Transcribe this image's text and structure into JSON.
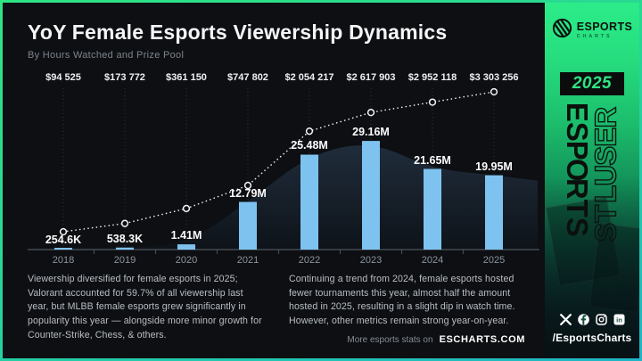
{
  "header": {
    "title": "YoY Female Esports Viewership Dynamics",
    "subtitle": "By Hours Watched and Prize Pool"
  },
  "chart_data": {
    "type": "bar",
    "title": "YoY Female Esports Viewership Dynamics",
    "subtitle": "By Hours Watched and Prize Pool",
    "categories": [
      "2018",
      "2019",
      "2020",
      "2021",
      "2022",
      "2023",
      "2024",
      "2025"
    ],
    "series": [
      {
        "name": "Hours Watched",
        "type": "bar",
        "values_millions": [
          0.2546,
          0.5383,
          1.41,
          12.79,
          25.48,
          29.16,
          21.65,
          19.95
        ],
        "labels": [
          "254.6K",
          "538.3K",
          "1.41M",
          "12.79M",
          "25.48M",
          "29.16M",
          "21.65M",
          "19.95M"
        ],
        "color": "#7ec3ef"
      },
      {
        "name": "Prize Pool",
        "type": "line",
        "values_usd": [
          94525,
          173772,
          361150,
          747802,
          2054217,
          2617903,
          2952118,
          3303256
        ],
        "labels": [
          "$94 525",
          "$173 772",
          "$361 150",
          "$747 802",
          "$2 054 217",
          "$2 617 903",
          "$2 952 118",
          "$3 303 256"
        ],
        "style": "white-dotted-with-open-circle-markers"
      }
    ],
    "ylim_millions": [
      0,
      49
    ],
    "grid": "none",
    "legend": "none"
  },
  "paragraphs": {
    "left": "Viewership diversified for female esports in 2025; Valorant accounted for 59.7% of all viewership last year, but MLBB female esports grew significantly in popularity this year — alongside more minor growth for Counter-Strike, Chess, & others.",
    "right": "Continuing a trend from 2024, female esports hosted fewer tournaments this year, almost half the amount hosted in 2025, resulting in a slight dip in watch time. However, other metrics remain strong year-on-year."
  },
  "footer": {
    "prefix": "More esports stats on",
    "site": "ESCHARTS.COM"
  },
  "sidebar": {
    "brand": {
      "name": "ESPORTS",
      "sub": "CHARTS"
    },
    "year_badge": "2025",
    "vertical_solid": "ESPORTS",
    "vertical_outline": "RESULTS",
    "social_icons": [
      "x-icon",
      "facebook-icon",
      "instagram-icon",
      "linkedin-icon"
    ],
    "handle": "/EsportsCharts"
  },
  "colors": {
    "accent_green": "#2ee483",
    "bar_blue": "#7ec3ef",
    "background": "#0d0f12",
    "area_fill_top": "#202c3b",
    "area_fill_bottom": "#0e1319",
    "frame_gradient_end": "#1fb4c6"
  }
}
